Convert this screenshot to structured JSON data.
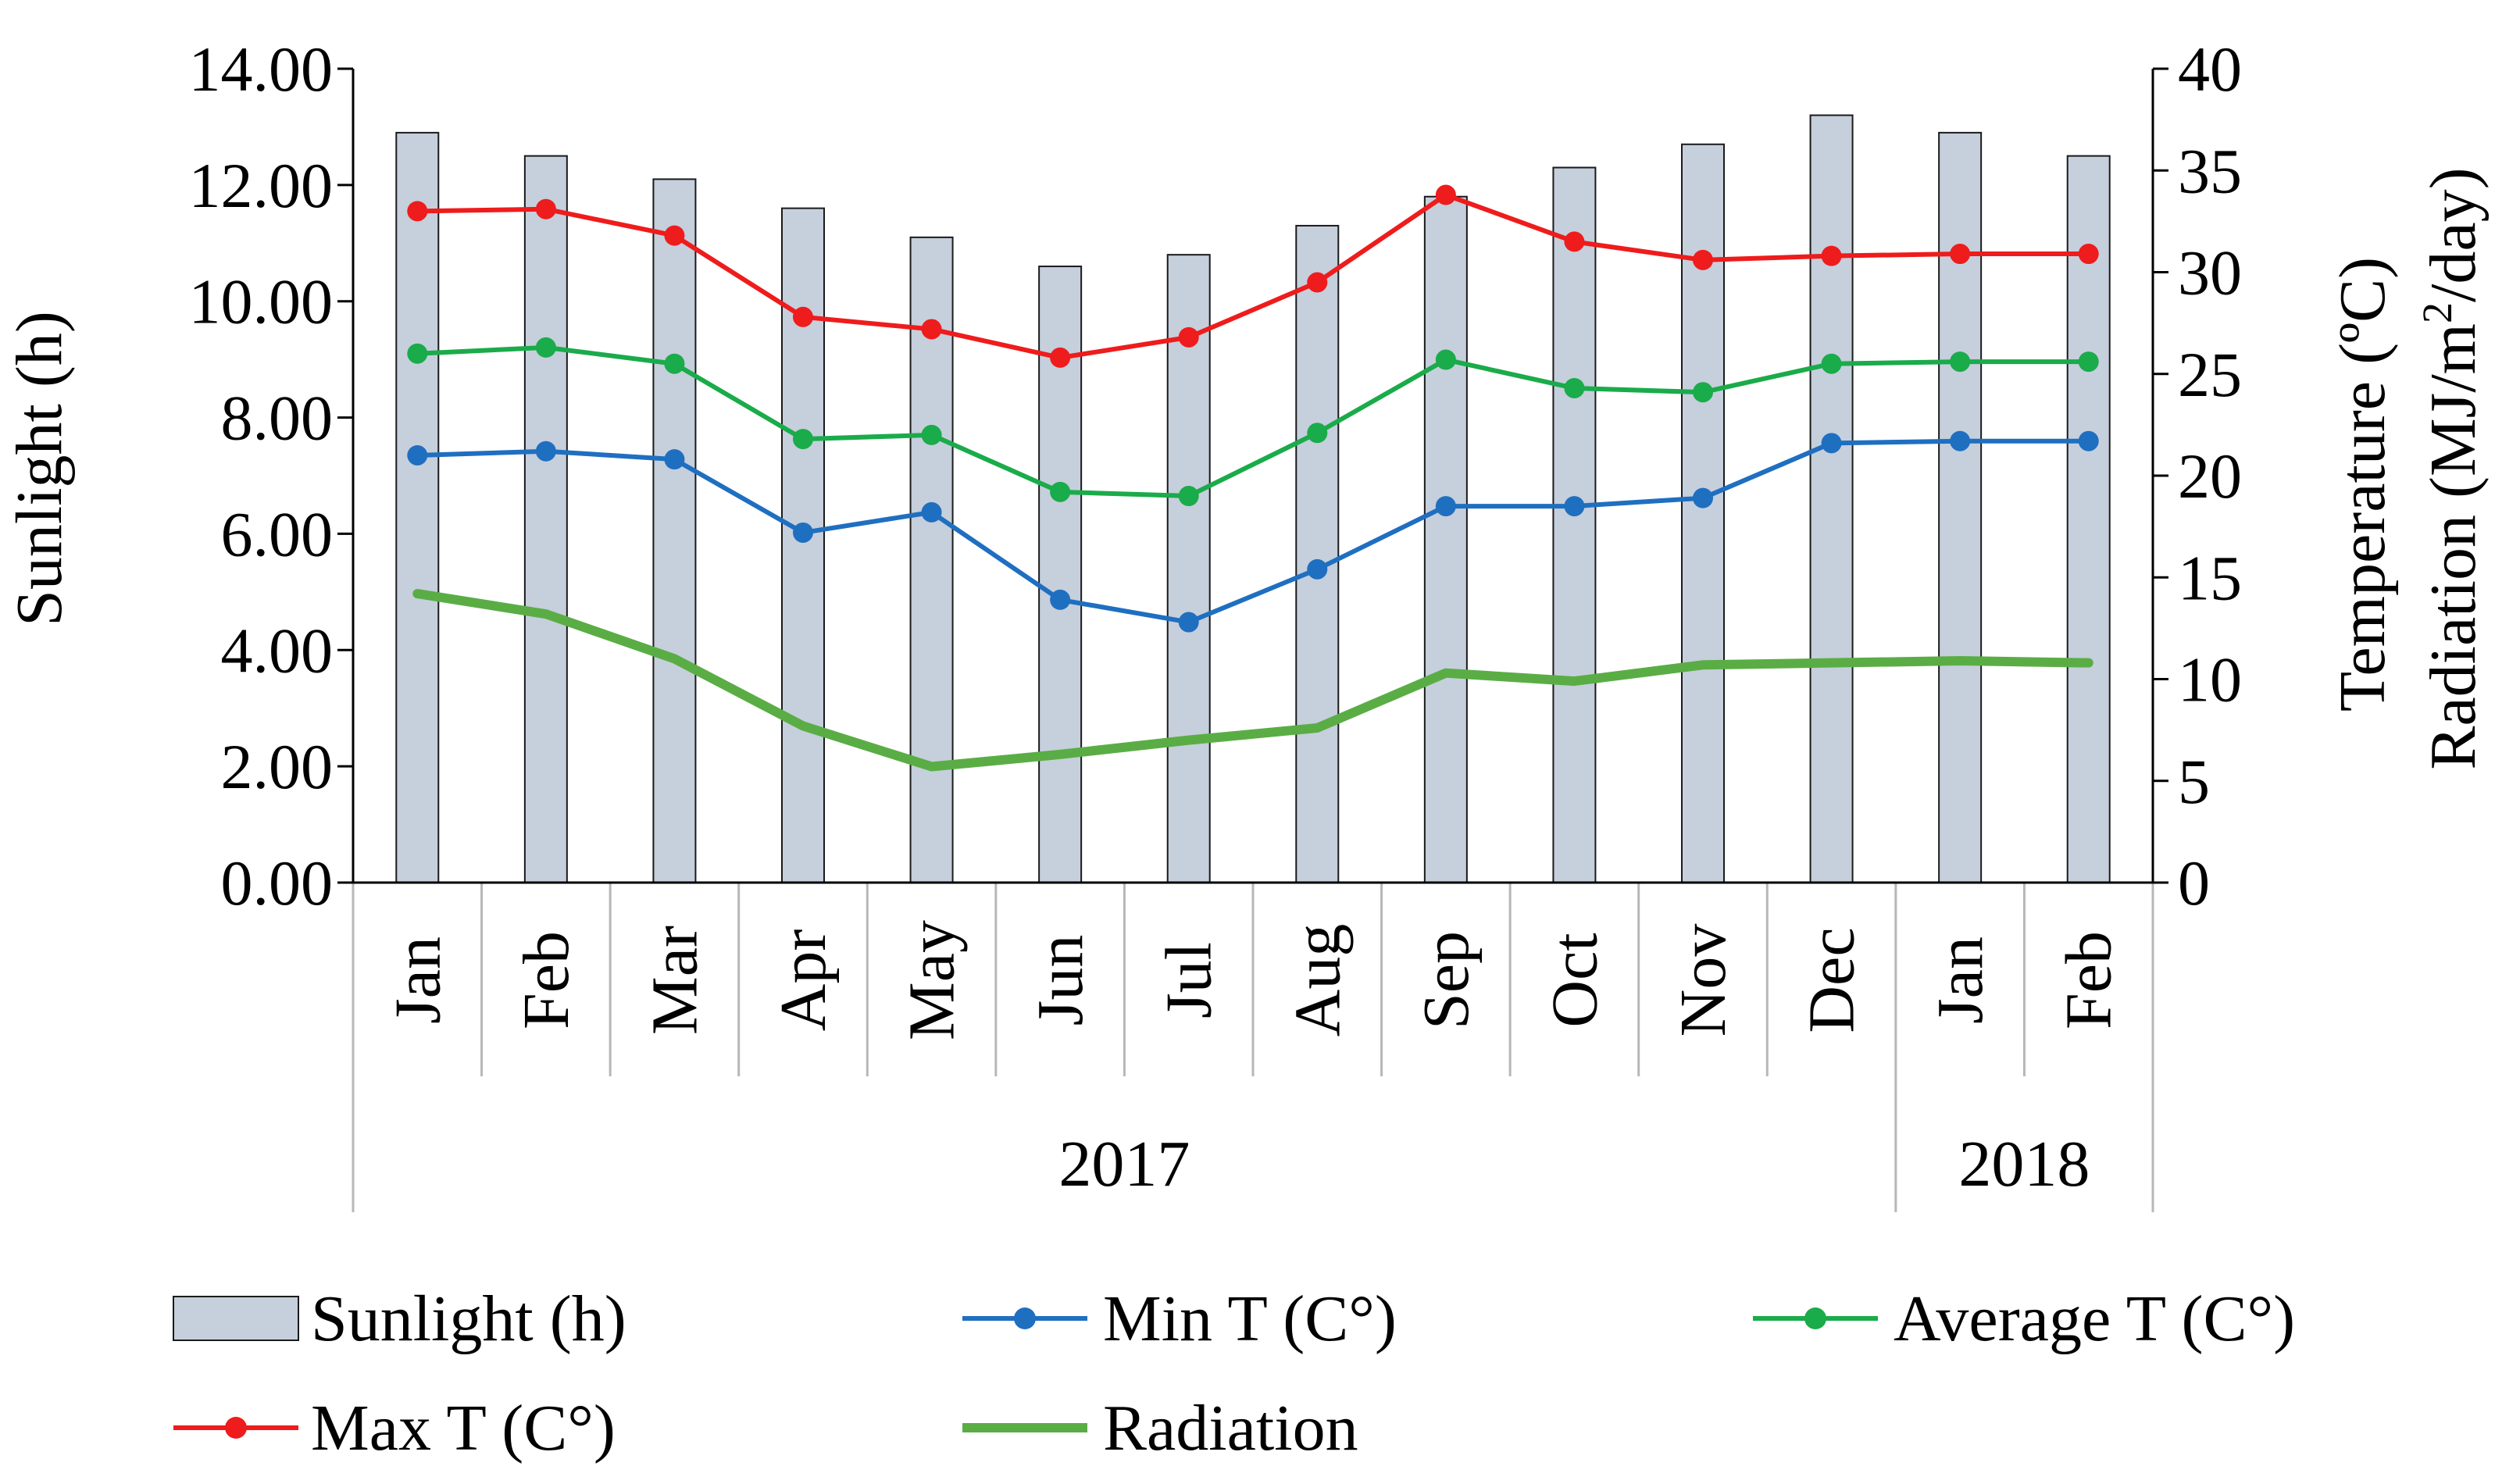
{
  "chart_data": {
    "type": "bar+line",
    "categories": [
      "Jan",
      "Feb",
      "Mar",
      "Apr",
      "May",
      "Jun",
      "Jul",
      "Aug",
      "Sep",
      "Oct",
      "Nov",
      "Dec",
      "Jan",
      "Feb"
    ],
    "year_groups": [
      {
        "label": "2017",
        "count": 12
      },
      {
        "label": "2018",
        "count": 2
      }
    ],
    "left_axis": {
      "label": "Sunlight (h)",
      "min": 0,
      "max": 14,
      "step": 2,
      "ticks": [
        "0.00",
        "2.00",
        "4.00",
        "6.00",
        "8.00",
        "10.00",
        "12.00",
        "14.00"
      ]
    },
    "right_axis": {
      "label_line1": "Temperature (ºC)",
      "label_line2_prefix": "Radiation (MJ/m",
      "label_line2_sup": "2",
      "label_line2_suffix": "/day)",
      "min": 0,
      "max": 40,
      "step": 5,
      "ticks": [
        "0",
        "5",
        "10",
        "15",
        "20",
        "25",
        "30",
        "35",
        "40"
      ]
    },
    "bar_series": {
      "name": "Sunlight (h)",
      "axis": "left",
      "color": "#c6cfdc",
      "values": [
        12.9,
        12.5,
        12.1,
        11.6,
        11.1,
        10.6,
        10.8,
        11.3,
        11.8,
        12.3,
        12.7,
        13.2,
        12.9,
        12.5
      ]
    },
    "line_series": [
      {
        "name": "Min T (C°)",
        "axis": "right",
        "color": "#1f6fc1",
        "markers": true,
        "values": [
          21.0,
          21.2,
          20.8,
          17.2,
          18.2,
          13.9,
          12.8,
          15.4,
          18.5,
          18.5,
          18.9,
          21.6,
          21.7,
          21.7
        ]
      },
      {
        "name": "Average T (C°)",
        "axis": "right",
        "color": "#1aab4a",
        "markers": true,
        "values": [
          26.0,
          26.3,
          25.5,
          21.8,
          22.0,
          19.2,
          19.0,
          22.1,
          25.7,
          24.3,
          24.1,
          25.5,
          25.6,
          25.6
        ]
      },
      {
        "name": "Max T (C°)",
        "axis": "right",
        "color": "#ee1c1c",
        "markers": true,
        "values": [
          33.0,
          33.1,
          31.8,
          27.8,
          27.2,
          25.8,
          26.8,
          29.5,
          33.8,
          31.5,
          30.6,
          30.8,
          30.9,
          30.9
        ]
      },
      {
        "name": "Radiation",
        "axis": "right",
        "color": "#5aad45",
        "markers": false,
        "values": [
          14.2,
          13.2,
          11.0,
          7.7,
          5.7,
          6.3,
          7.0,
          7.6,
          10.3,
          9.9,
          10.7,
          10.8,
          10.9,
          10.8
        ]
      }
    ],
    "legend": {
      "position": "bottom",
      "items": [
        {
          "label": "Sunlight (h)",
          "kind": "bar",
          "color": "#c6cfdc"
        },
        {
          "label": "Min T (C°)",
          "kind": "line-marker",
          "color": "#1f6fc1"
        },
        {
          "label": "Average T (C°)",
          "kind": "line-marker",
          "color": "#1aab4a"
        },
        {
          "label": "Max T (C°)",
          "kind": "line-marker",
          "color": "#ee1c1c"
        },
        {
          "label": "Radiation",
          "kind": "line",
          "color": "#5aad45"
        }
      ]
    }
  }
}
